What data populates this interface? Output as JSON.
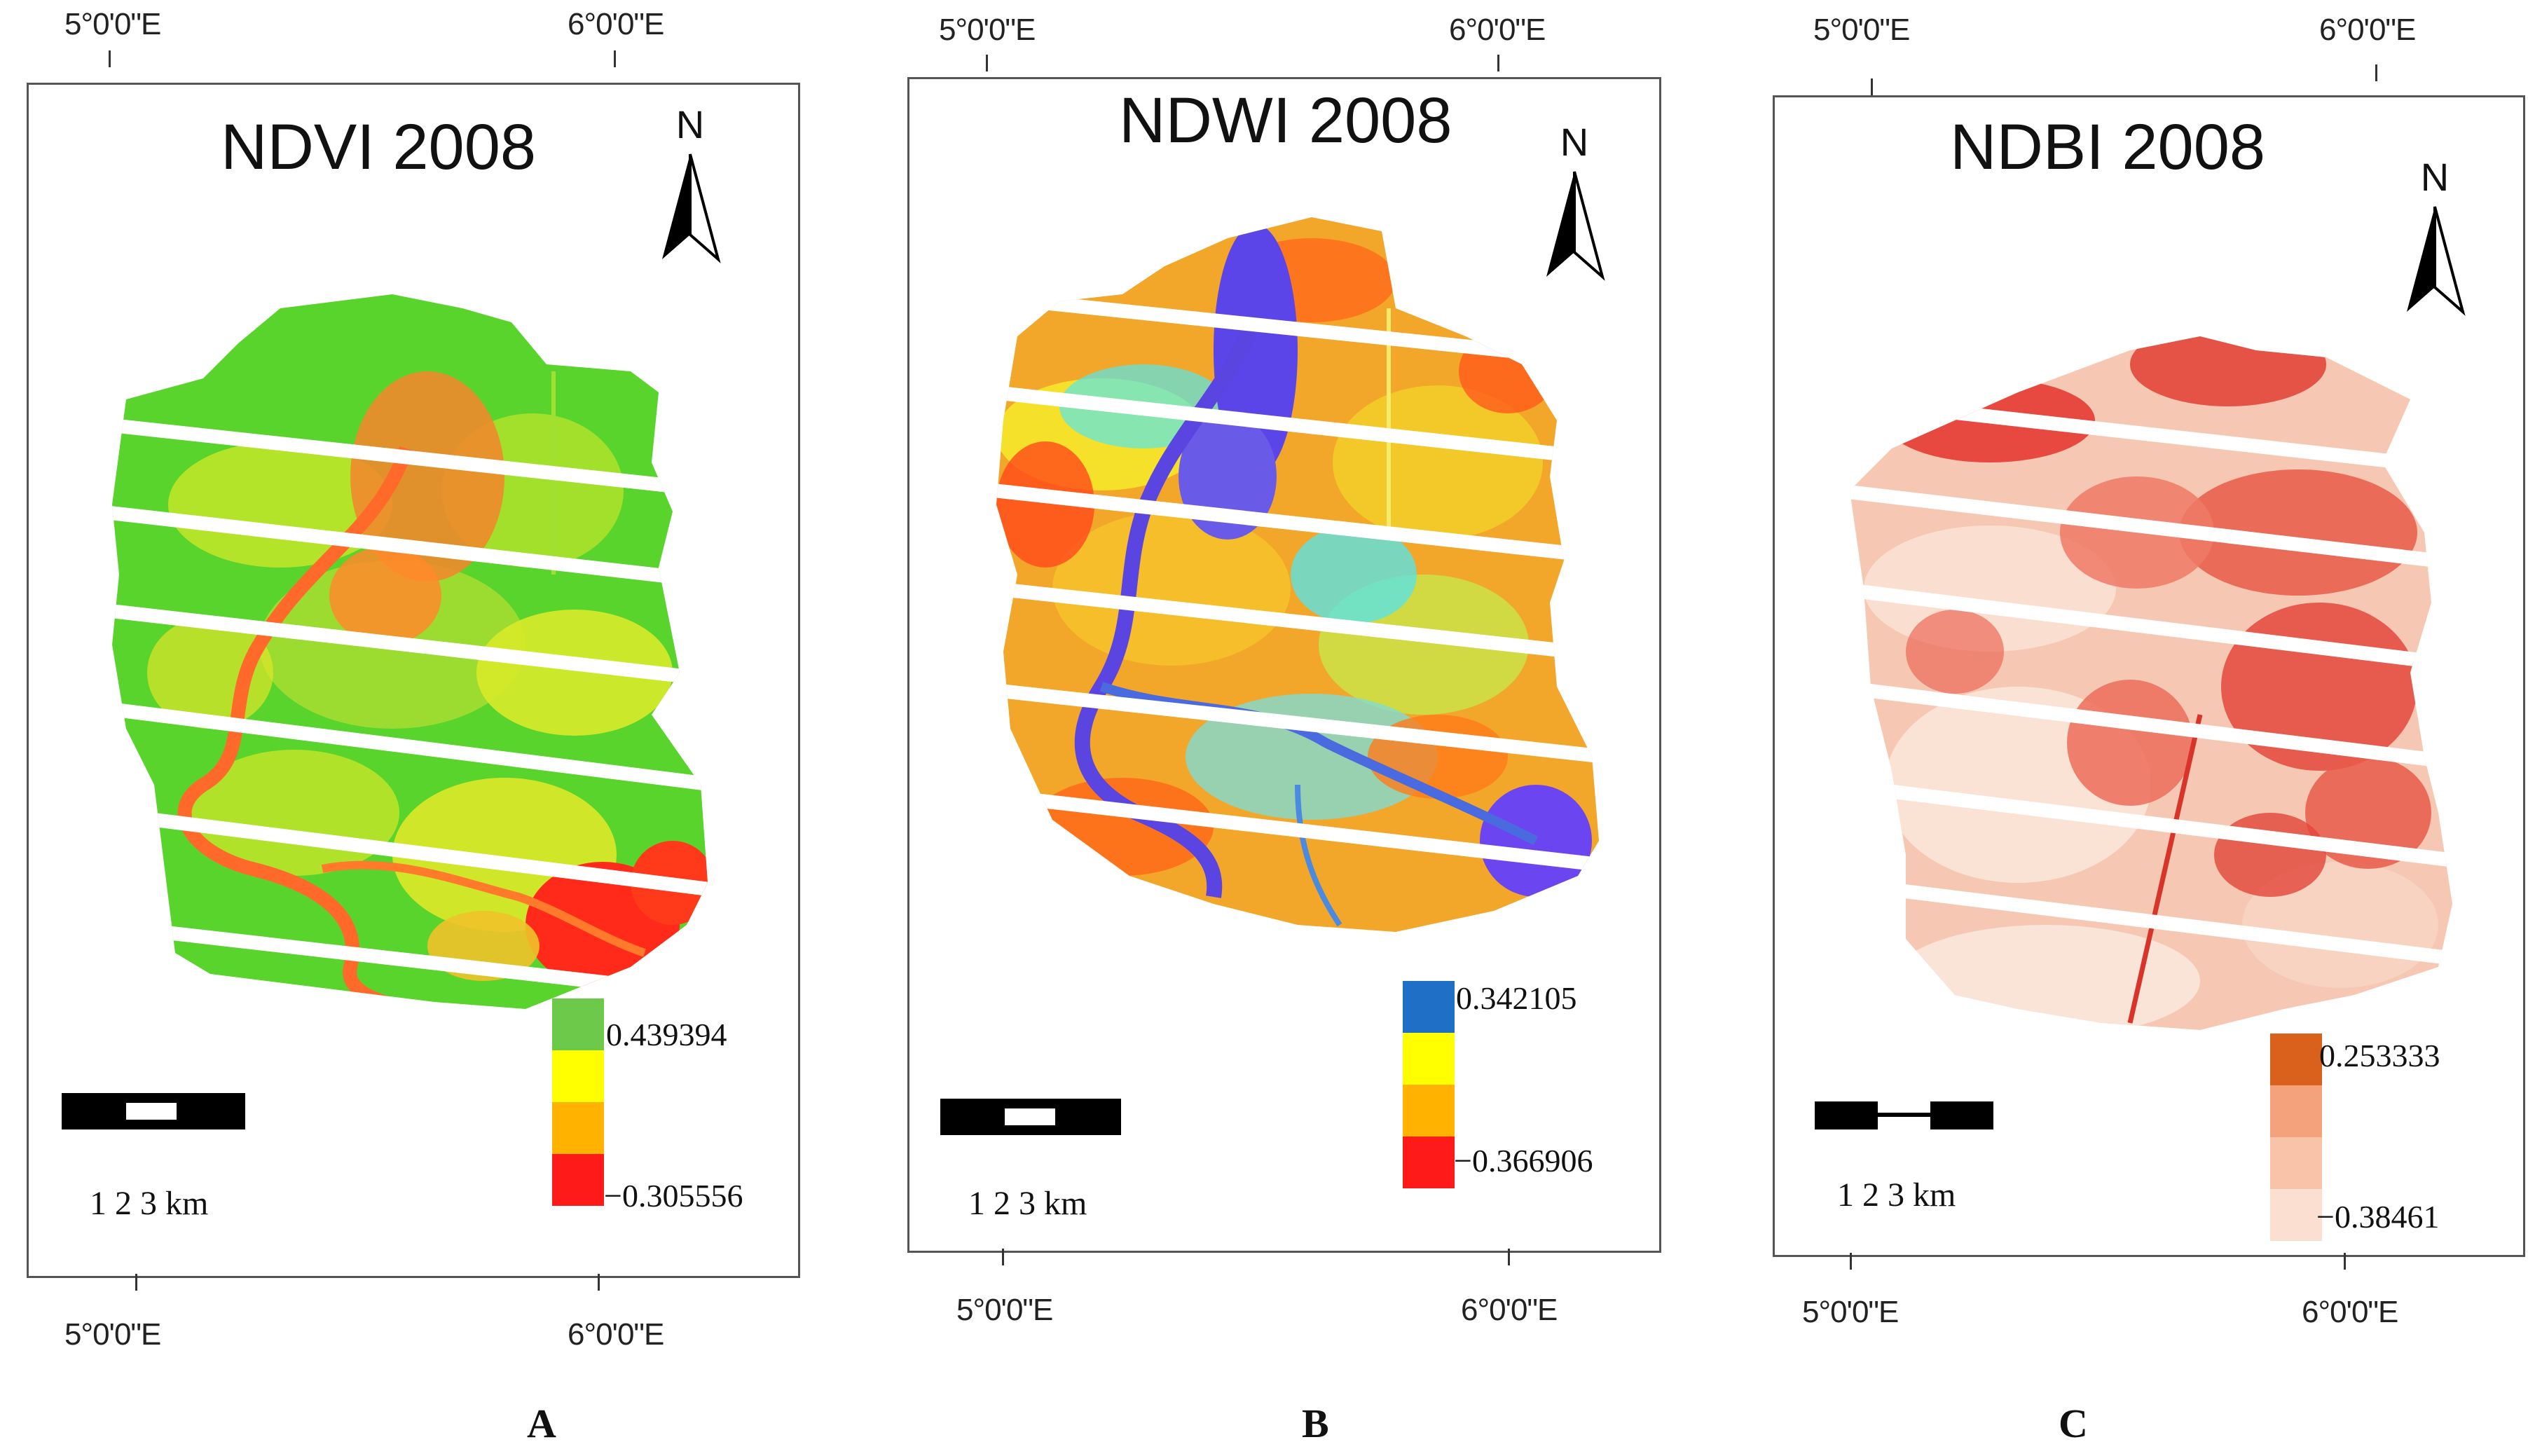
{
  "panels": [
    {
      "letter": "A",
      "title": "NDVI 2008",
      "top_coords": [
        "5°0'0\"E",
        "6°0'0\"E"
      ],
      "bottom_coords": [
        "5°0'0\"E",
        "6°0'0\"E"
      ],
      "north_label": "N",
      "scale_label": "1   2   3 km",
      "legend": {
        "max_label": "0.439394",
        "min_label": "−0.305556",
        "colors": [
          "#6cc94a",
          "#ffff00",
          "#ffb300",
          "#ff1a1a"
        ]
      }
    },
    {
      "letter": "B",
      "title": "NDWI 2008",
      "top_coords": [
        "5°0'0\"E",
        "6°0'0\"E"
      ],
      "bottom_coords": [
        "5°0'0\"E",
        "6°0'0\"E"
      ],
      "north_label": "N",
      "scale_label": "1   2   3 km",
      "legend": {
        "max_label": "0.342105",
        "min_label": "−0.366906",
        "colors": [
          "#1f6fc7",
          "#ffff00",
          "#ffb300",
          "#ff1a1a"
        ]
      }
    },
    {
      "letter": "C",
      "title": "NDBI 2008",
      "top_coords": [
        "5°0'0\"E",
        "6°0'0\"E"
      ],
      "bottom_coords": [
        "5°0'0\"E",
        "6°0'0\"E"
      ],
      "north_label": "N",
      "scale_label": "1   2   3 km",
      "legend": {
        "max_label": "0.253333",
        "min_label": "−0.38461",
        "colors": [
          "#d9611c",
          "#f4a27c",
          "#f8c3a8",
          "#fbe0d2"
        ]
      }
    }
  ]
}
